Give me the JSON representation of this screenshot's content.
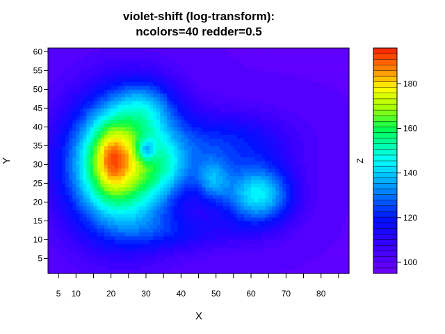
{
  "chart_data": {
    "type": "heatmap",
    "title": [
      "violet-shift (log-transform):",
      "ncolors=40  redder=0.5"
    ],
    "xlabel": "X",
    "ylabel": "Y",
    "colorbar_label": "Z",
    "xlim": [
      2,
      88
    ],
    "ylim": [
      1,
      61
    ],
    "zlim": [
      95,
      196
    ],
    "x_ticks": [
      5,
      10,
      20,
      30,
      40,
      50,
      60,
      70,
      80
    ],
    "x_minor_ticks": [
      15,
      25,
      35,
      45,
      55,
      65,
      75,
      85
    ],
    "y_ticks": [
      5,
      10,
      15,
      20,
      25,
      30,
      35,
      40,
      45,
      50,
      55,
      60
    ],
    "z_ticks": [
      100,
      120,
      140,
      160,
      180
    ],
    "ncolors": 40,
    "background_z": 100,
    "features": [
      {
        "x": 23,
        "y": 30,
        "sx": 15,
        "sy": 17,
        "amp": 74
      },
      {
        "x": 20,
        "y": 32,
        "sx": 5.5,
        "sy": 9,
        "amp": 20
      },
      {
        "x": 30,
        "y": 46,
        "sx": 9,
        "sy": 7,
        "amp": 18
      },
      {
        "x": 37,
        "y": 29,
        "sx": 7,
        "sy": 7,
        "amp": 12
      },
      {
        "x": 49,
        "y": 26,
        "sx": 5,
        "sy": 6,
        "amp": 24
      },
      {
        "x": 62,
        "y": 22,
        "sx": 10,
        "sy": 8,
        "amp": 44
      },
      {
        "x": 53,
        "y": 36,
        "sx": 18,
        "sy": 8,
        "amp": 20
      },
      {
        "x": 40,
        "y": 12,
        "sx": 18,
        "sy": 5,
        "amp": 12
      },
      {
        "x": 30,
        "y": 34,
        "sx": 2.8,
        "sy": 3,
        "amp": -26
      }
    ]
  }
}
